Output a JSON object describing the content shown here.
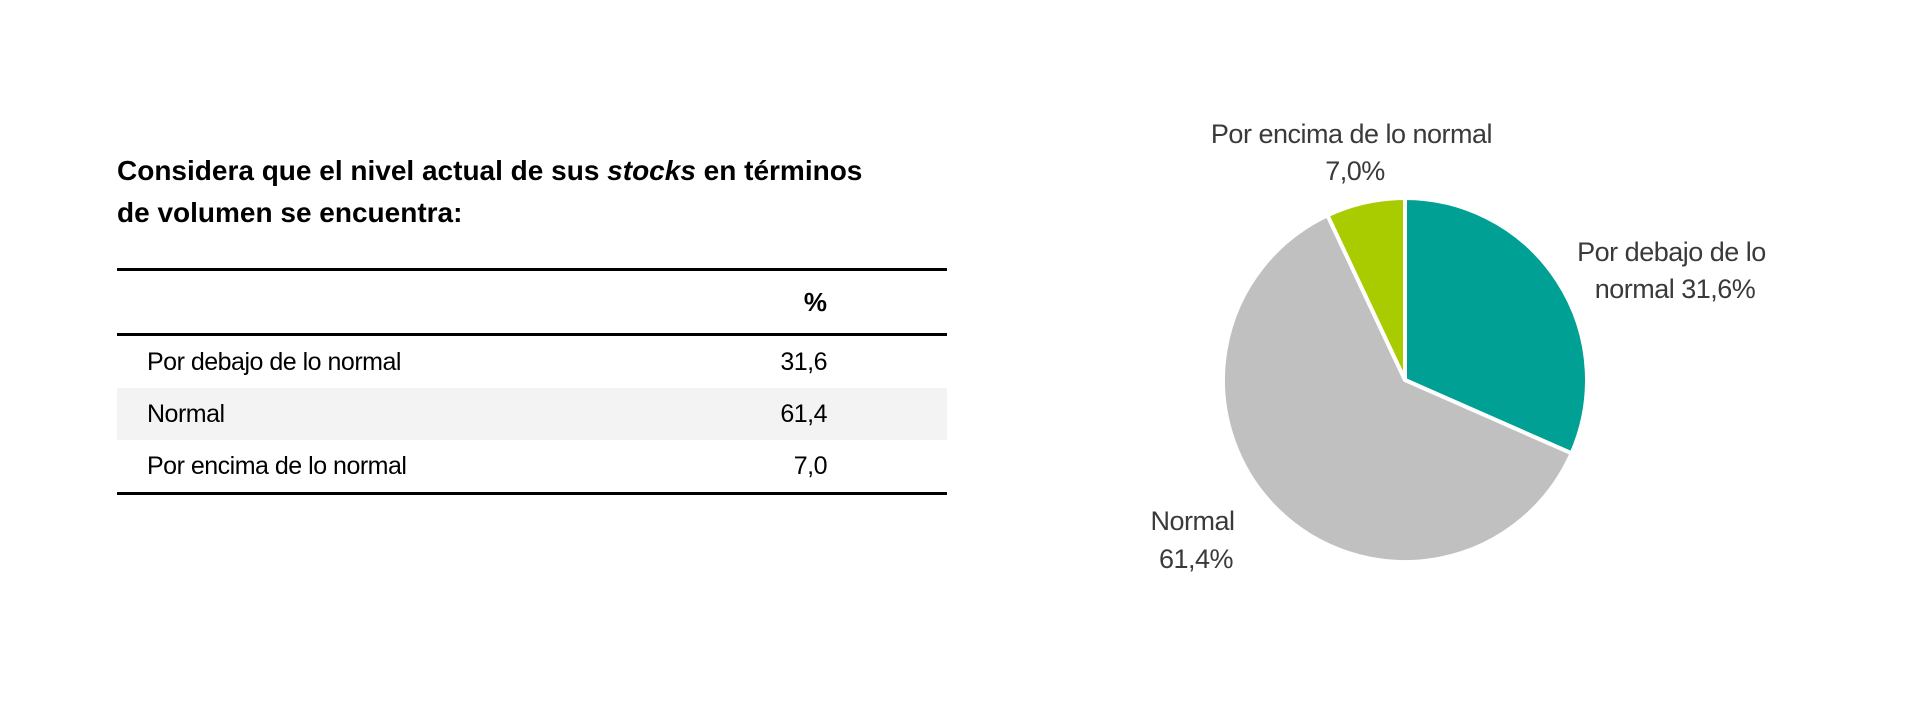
{
  "title": {
    "part1": "Considera que el nivel actual de sus ",
    "italic": "stocks",
    "part2": " en términos de volumen se encuentra:"
  },
  "table": {
    "header_col2": "%",
    "rows": [
      {
        "label": "Por debajo de lo normal",
        "value": "31,6"
      },
      {
        "label": "Normal",
        "value": "61,4"
      },
      {
        "label": "Por encima de lo normal",
        "value": "7,0"
      }
    ]
  },
  "chart_data": {
    "type": "pie",
    "categories": [
      "Por debajo de lo normal",
      "Normal",
      "Por encima de lo normal"
    ],
    "values": [
      31.6,
      61.4,
      7.0
    ],
    "colors": [
      "#00a094",
      "#c0c0c0",
      "#a9cc00"
    ],
    "labels": {
      "debajo": {
        "line1": "Por debajo de lo",
        "line2": "normal 31,6%"
      },
      "normal": {
        "line1": "Normal",
        "line2": "61,4%"
      },
      "encima": {
        "line1": "Por encima de lo normal",
        "line2": "7,0%"
      }
    },
    "title": "",
    "legend": "none"
  }
}
